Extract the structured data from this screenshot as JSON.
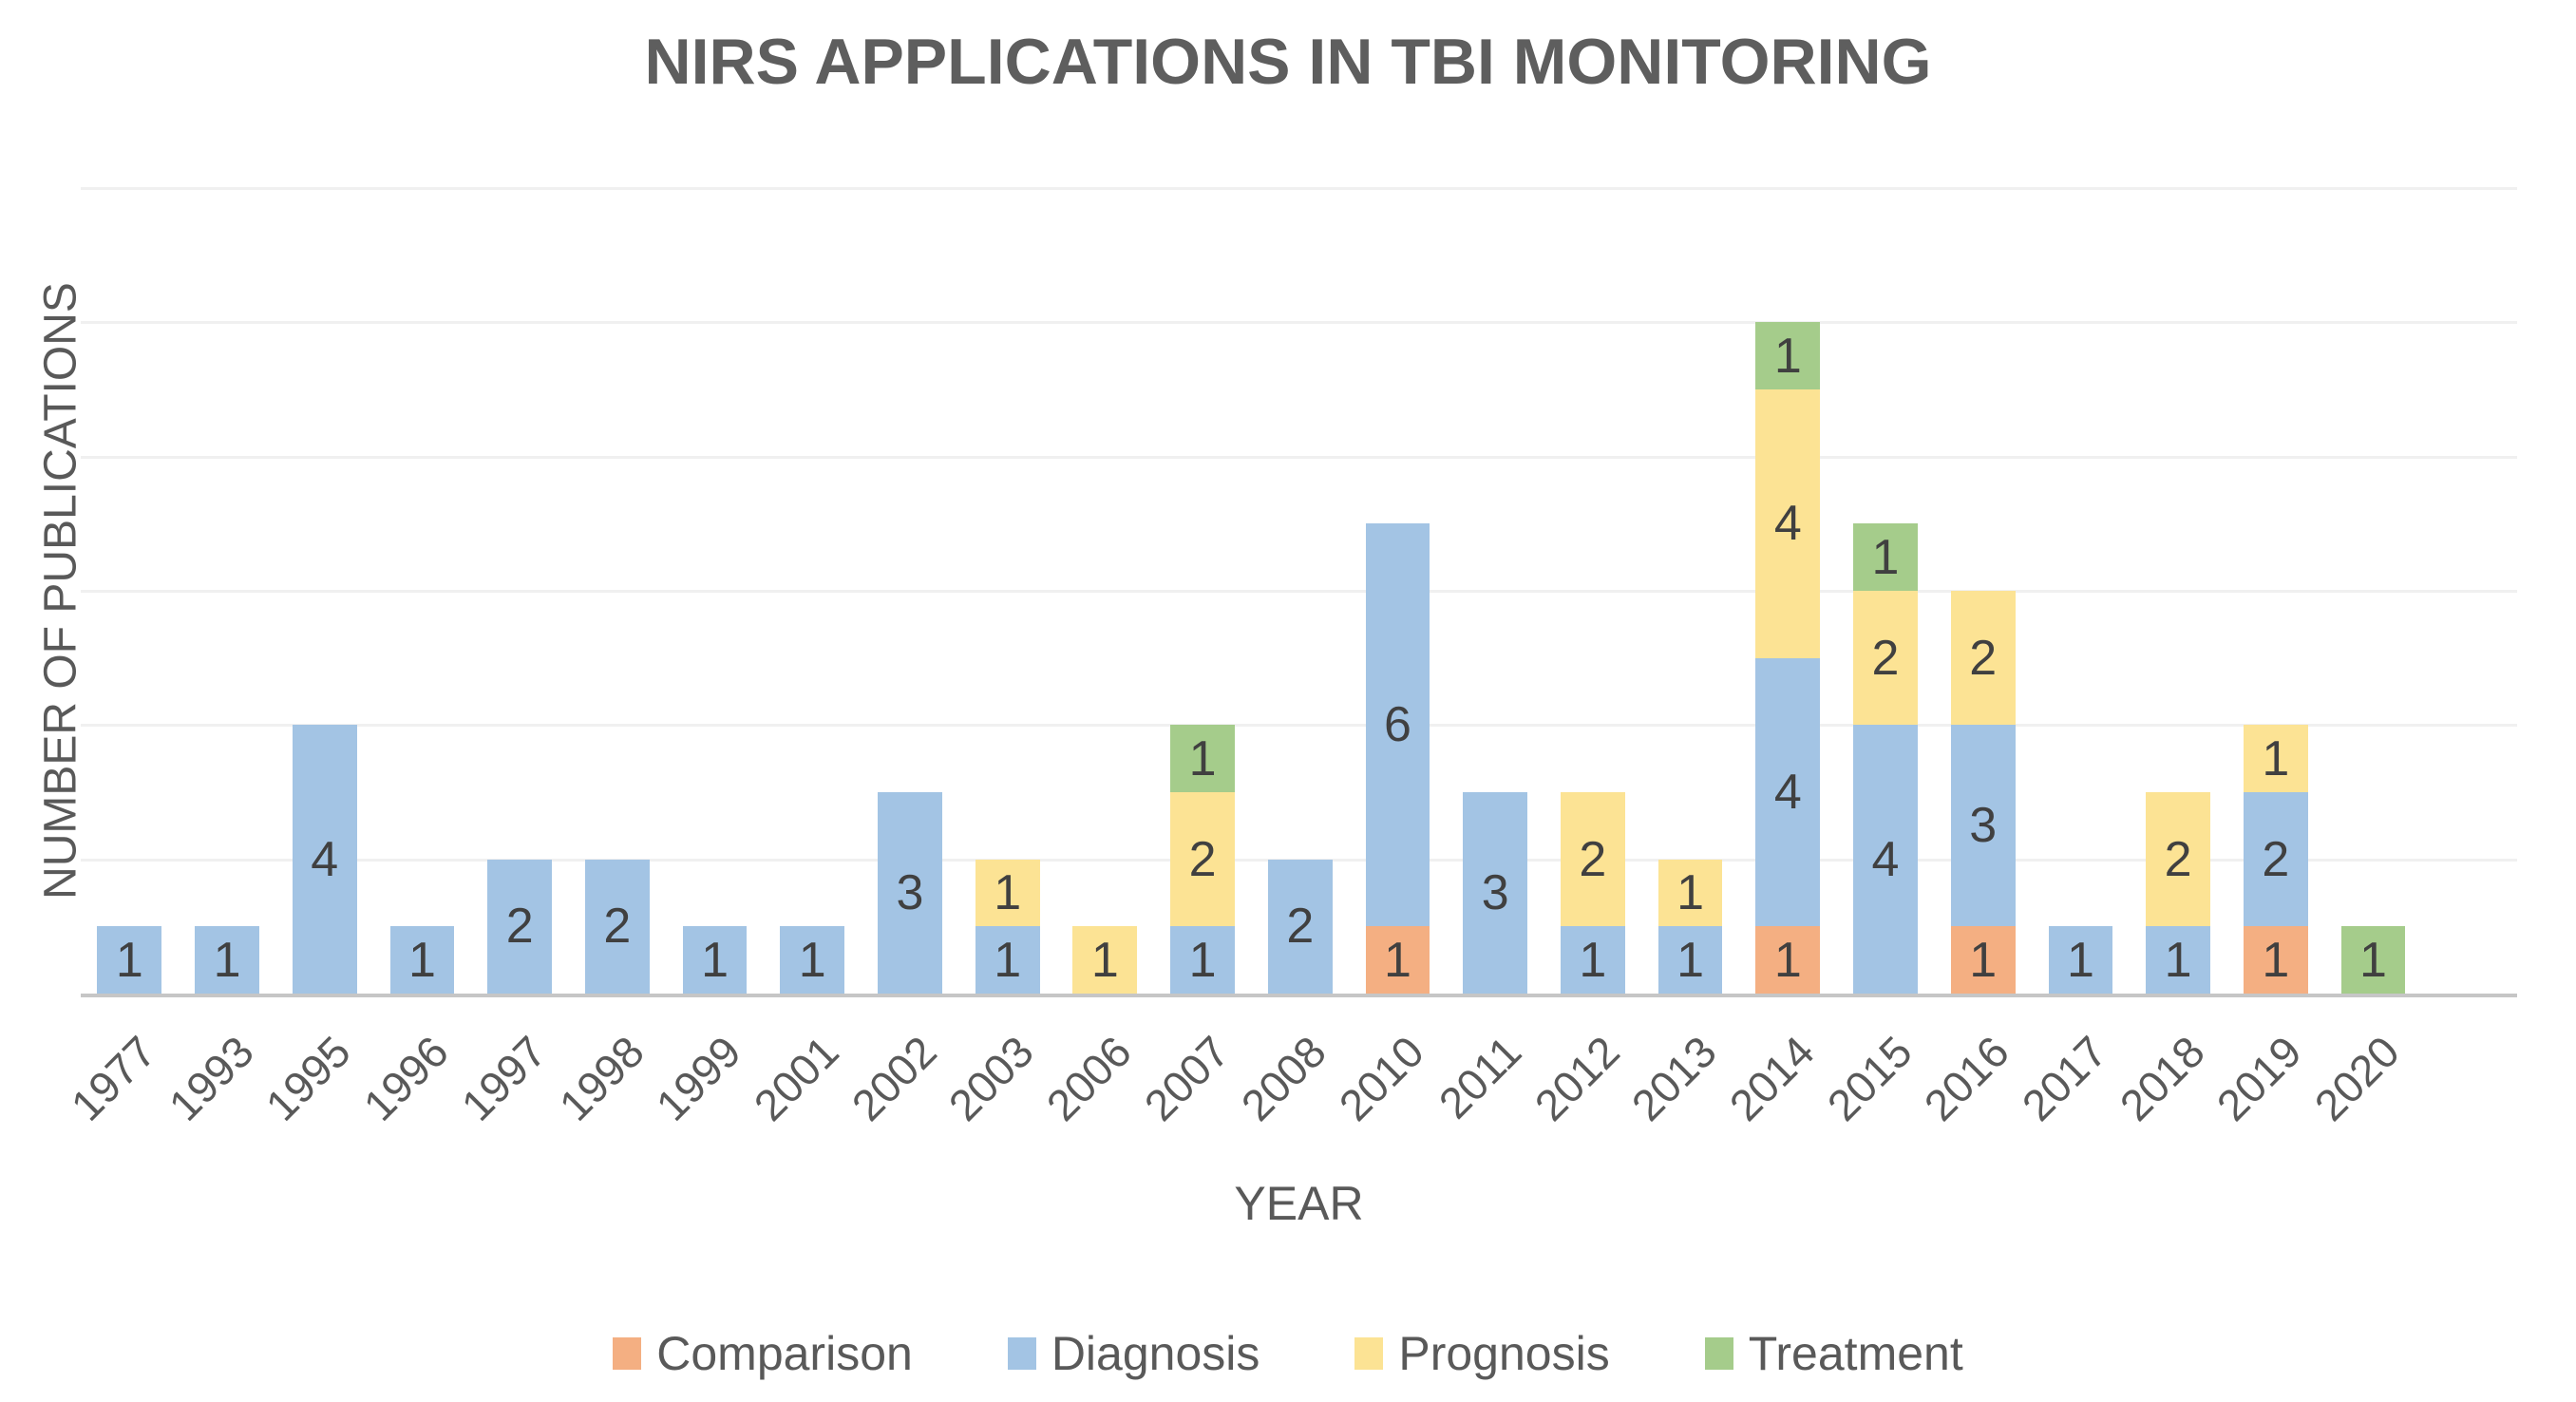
{
  "title": "NIRS APPLICATIONS IN TBI MONITORING",
  "axes": {
    "x_label": "YEAR",
    "y_label": "NUMBER OF PUBLICATIONS"
  },
  "chart_data": {
    "type": "bar",
    "stacked": true,
    "title": "NIRS APPLICATIONS IN TBI MONITORING",
    "xlabel": "YEAR",
    "ylabel": "NUMBER OF PUBLICATIONS",
    "ylim": [
      0,
      12
    ],
    "grid_step": 2,
    "grid": true,
    "y_tick_labels_shown": false,
    "segment_labels_shown": true,
    "legend_position": "bottom",
    "categories": [
      "1977",
      "1993",
      "1995",
      "1996",
      "1997",
      "1998",
      "1999",
      "2001",
      "2002",
      "2003",
      "2006",
      "2007",
      "2008",
      "2010",
      "2011",
      "2012",
      "2013",
      "2014",
      "2015",
      "2016",
      "2017",
      "2018",
      "2019",
      "2020"
    ],
    "series": [
      {
        "name": "Comparison",
        "color": "#F4AF82",
        "values": [
          0,
          0,
          0,
          0,
          0,
          0,
          0,
          0,
          0,
          0,
          0,
          0,
          0,
          1,
          0,
          0,
          0,
          1,
          0,
          1,
          0,
          0,
          1,
          0
        ]
      },
      {
        "name": "Diagnosis",
        "color": "#A3C4E4",
        "values": [
          1,
          1,
          4,
          1,
          2,
          2,
          1,
          1,
          3,
          1,
          0,
          1,
          2,
          6,
          3,
          1,
          1,
          4,
          4,
          3,
          1,
          1,
          2,
          0
        ]
      },
      {
        "name": "Prognosis",
        "color": "#FCE394",
        "values": [
          0,
          0,
          0,
          0,
          0,
          0,
          0,
          0,
          0,
          1,
          1,
          2,
          0,
          0,
          0,
          2,
          1,
          4,
          2,
          2,
          0,
          2,
          1,
          0
        ]
      },
      {
        "name": "Treatment",
        "color": "#A5CC8B",
        "values": [
          0,
          0,
          0,
          0,
          0,
          0,
          0,
          0,
          0,
          0,
          0,
          1,
          0,
          0,
          0,
          0,
          0,
          1,
          1,
          0,
          0,
          0,
          0,
          1
        ]
      }
    ],
    "colors": {
      "gridline": "#F0F0F0",
      "axis_line": "#C6C6C6",
      "title_text": "#5E5E5E",
      "axis_text": "#595959",
      "data_label_text": "#404040"
    }
  }
}
